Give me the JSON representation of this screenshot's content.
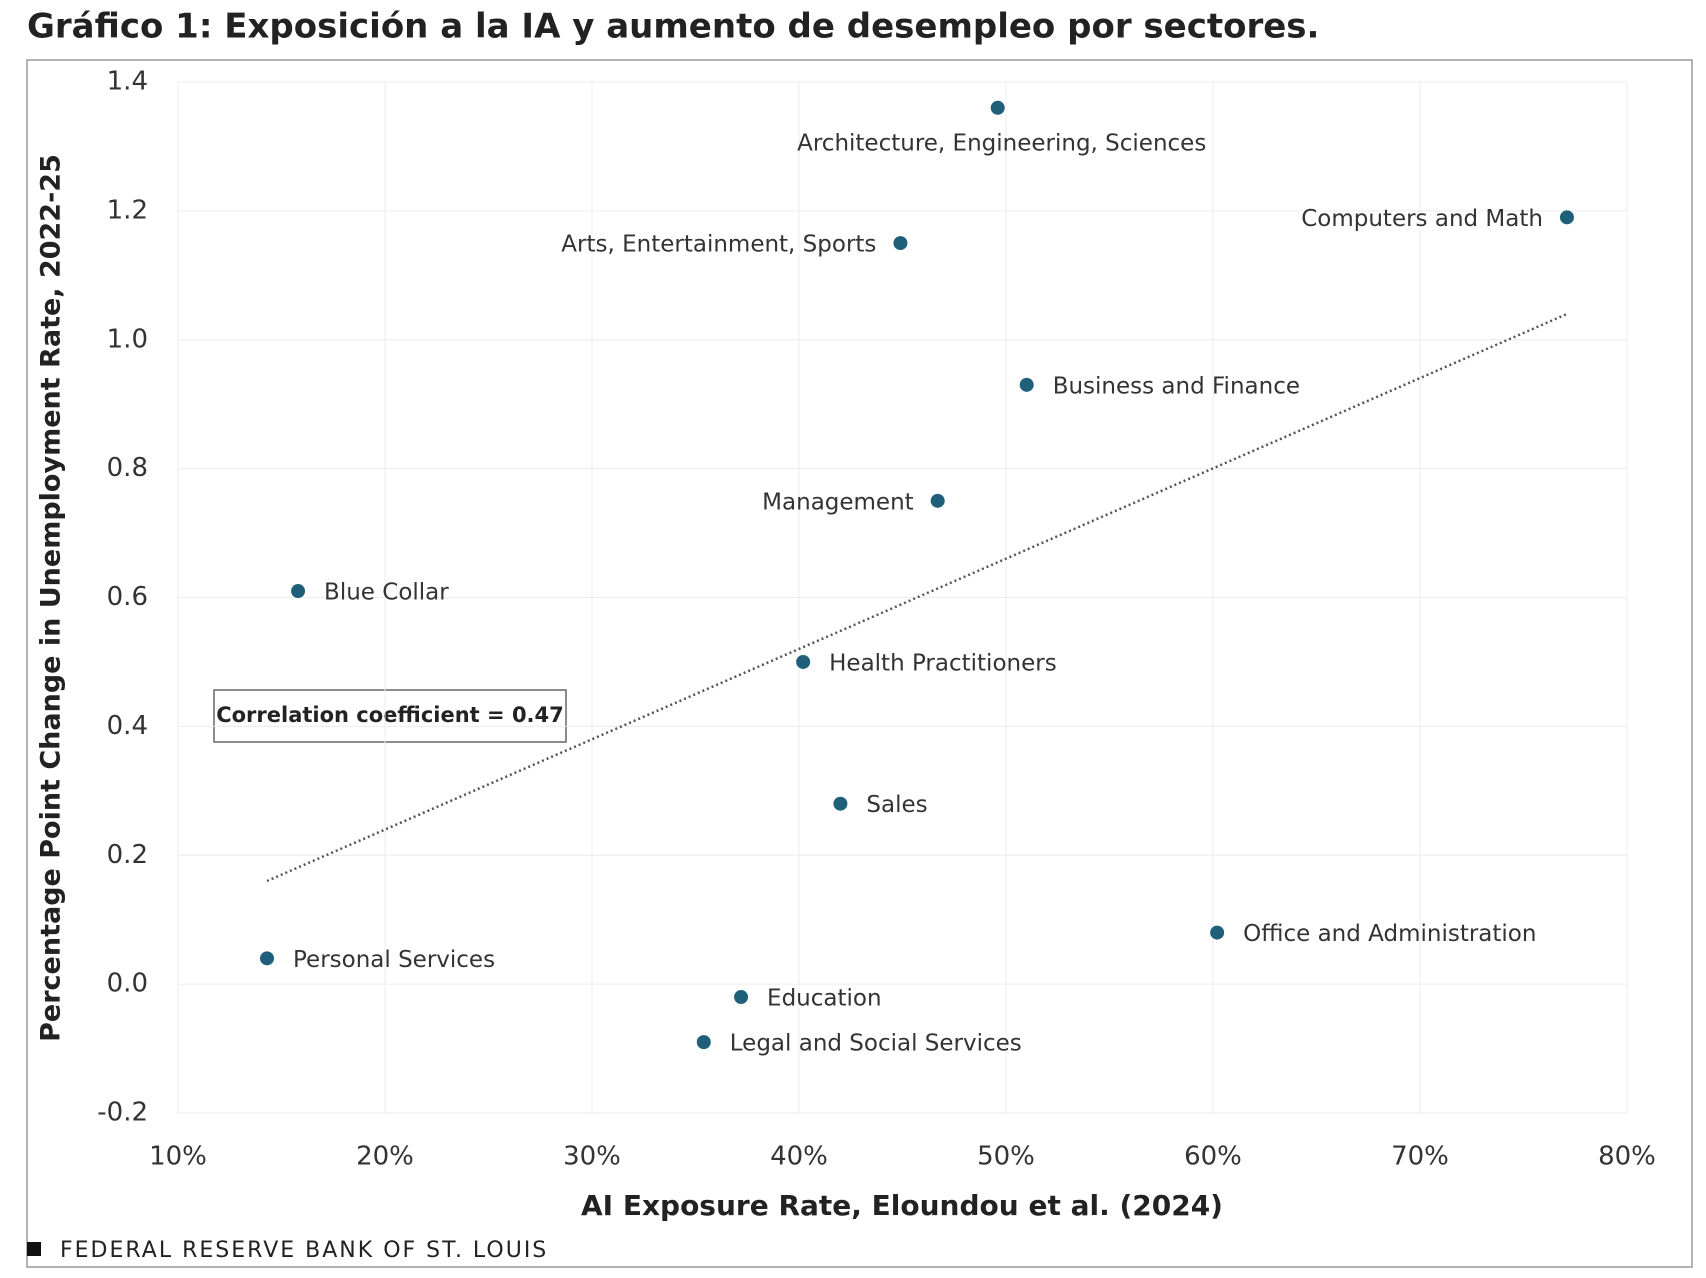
{
  "chart_data": {
    "type": "scatter",
    "title": "Gráfico 1: Exposición a la IA y aumento de desempleo por sectores.",
    "x_label": "AI Exposure Rate, Eloundou et al. (2024)",
    "y_label": "Percentage Point Change in Unemployment Rate, 2022-25",
    "annotation": "Correlation coefficient = 0.47",
    "source": "FEDERAL RESERVE BANK OF ST. LOUIS",
    "color": "#1f5f7a",
    "point_labels": [
      "Architecture, Engineering, Sciences",
      "Computers and Math",
      "Arts, Entertainment, Sports",
      "Business and Finance",
      "Management",
      "Blue Collar",
      "Health Practitioners",
      "Sales",
      "Office and Administration",
      "Personal Services",
      "Education",
      "Legal and Social Services"
    ],
    "x": [
      49.6,
      77.1,
      44.9,
      51.0,
      46.7,
      15.8,
      40.2,
      42.0,
      60.2,
      14.3,
      37.2,
      35.4
    ],
    "values": [
      1.36,
      1.19,
      1.15,
      0.93,
      0.75,
      0.61,
      0.5,
      0.28,
      0.08,
      0.04,
      -0.02,
      -0.09
    ],
    "trendline": {
      "x": [
        14.3,
        77.1
      ],
      "y": [
        0.16,
        1.04
      ]
    },
    "xlim": [
      10,
      80
    ],
    "xticks": [
      {
        "value": 10,
        "label": "10%"
      },
      {
        "value": 20,
        "label": "20%"
      },
      {
        "value": 30,
        "label": "30%"
      },
      {
        "value": 40,
        "label": "40%"
      },
      {
        "value": 50,
        "label": "50%"
      },
      {
        "value": 60,
        "label": "60%"
      },
      {
        "value": 70,
        "label": "70%"
      },
      {
        "value": 80,
        "label": "80%"
      }
    ],
    "ylim": [
      -0.2,
      1.4
    ],
    "yticks": [
      -0.2,
      {
        "value": 0,
        "label": "0.0"
      },
      0.2,
      0.4,
      0.6,
      0.8,
      {
        "value": 1,
        "label": "1.0"
      },
      1.2,
      1.4
    ],
    "grid": true
  }
}
